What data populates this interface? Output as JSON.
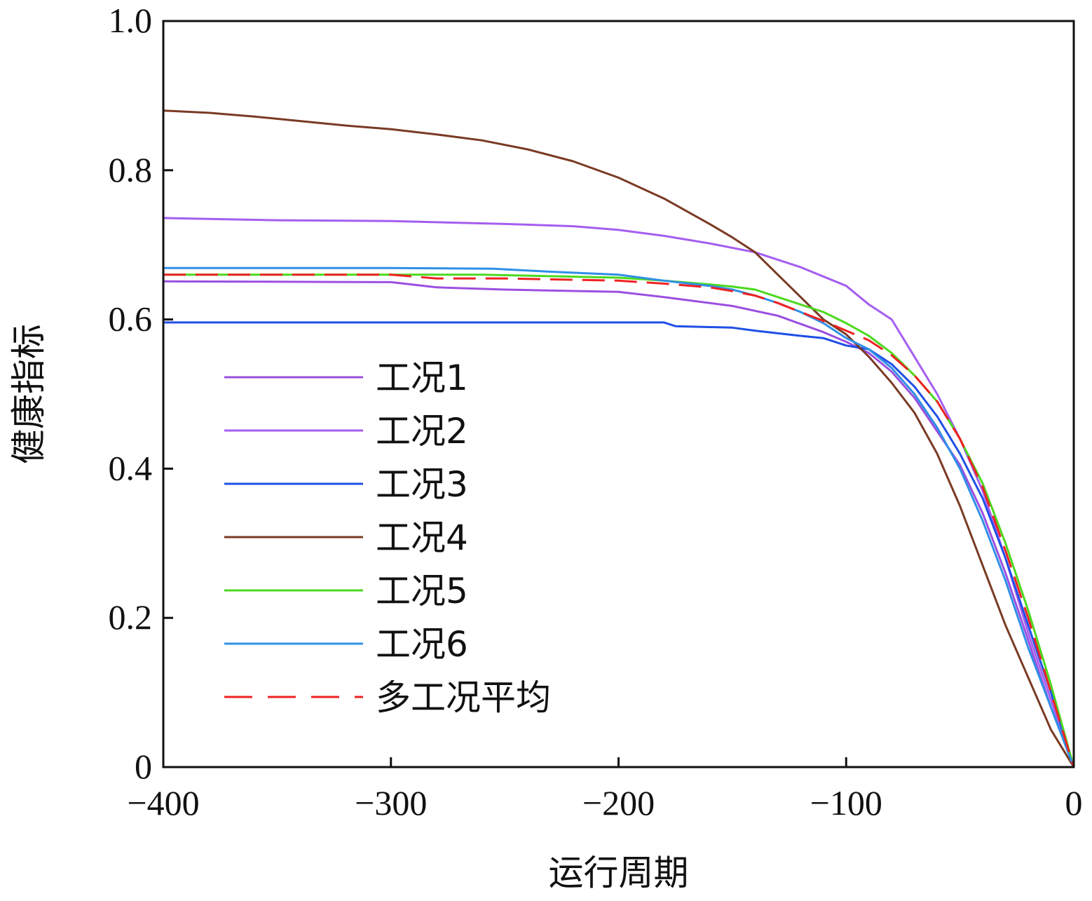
{
  "chart_data": {
    "type": "line",
    "xlabel": "运行周期",
    "ylabel": "健康指标",
    "xlim": [
      -400,
      0
    ],
    "ylim": [
      0,
      1.0
    ],
    "x_ticks": [
      -400,
      -300,
      -200,
      -100,
      0
    ],
    "x_tick_labels": [
      "−400",
      "−300",
      "−200",
      "−100",
      "0"
    ],
    "y_ticks": [
      0,
      0.2,
      0.4,
      0.6,
      0.8,
      1.0
    ],
    "y_tick_labels": [
      "0",
      "0.2",
      "0.4",
      "0.6",
      "0.8",
      "1.0"
    ],
    "grid": false,
    "legend_position": "lower-left",
    "series": [
      {
        "name": "工况1",
        "color": "#9b4fe0",
        "dash": false,
        "points": [
          [
            -400,
            0.651
          ],
          [
            -300,
            0.65
          ],
          [
            -280,
            0.643
          ],
          [
            -250,
            0.64
          ],
          [
            -200,
            0.637
          ],
          [
            -180,
            0.63
          ],
          [
            -150,
            0.618
          ],
          [
            -130,
            0.605
          ],
          [
            -110,
            0.583
          ],
          [
            -100,
            0.57
          ],
          [
            -90,
            0.555
          ],
          [
            -80,
            0.53
          ],
          [
            -70,
            0.495
          ],
          [
            -60,
            0.45
          ],
          [
            -50,
            0.405
          ],
          [
            -40,
            0.34
          ],
          [
            -30,
            0.26
          ],
          [
            -20,
            0.17
          ],
          [
            -10,
            0.08
          ],
          [
            0,
            0.0
          ]
        ]
      },
      {
        "name": "工况2",
        "color": "#a45ef0",
        "dash": false,
        "points": [
          [
            -400,
            0.736
          ],
          [
            -350,
            0.733
          ],
          [
            -300,
            0.732
          ],
          [
            -250,
            0.728
          ],
          [
            -220,
            0.725
          ],
          [
            -200,
            0.72
          ],
          [
            -180,
            0.712
          ],
          [
            -160,
            0.702
          ],
          [
            -140,
            0.69
          ],
          [
            -120,
            0.67
          ],
          [
            -100,
            0.645
          ],
          [
            -90,
            0.62
          ],
          [
            -80,
            0.6
          ],
          [
            -70,
            0.55
          ],
          [
            -60,
            0.5
          ],
          [
            -50,
            0.44
          ],
          [
            -40,
            0.37
          ],
          [
            -30,
            0.28
          ],
          [
            -20,
            0.18
          ],
          [
            -10,
            0.09
          ],
          [
            0,
            0.0
          ]
        ]
      },
      {
        "name": "工况3",
        "color": "#1f4fe6",
        "dash": false,
        "points": [
          [
            -400,
            0.596
          ],
          [
            -300,
            0.596
          ],
          [
            -220,
            0.596
          ],
          [
            -180,
            0.596
          ],
          [
            -175,
            0.591
          ],
          [
            -150,
            0.589
          ],
          [
            -140,
            0.585
          ],
          [
            -120,
            0.578
          ],
          [
            -110,
            0.575
          ],
          [
            -100,
            0.565
          ],
          [
            -90,
            0.56
          ],
          [
            -80,
            0.54
          ],
          [
            -70,
            0.51
          ],
          [
            -60,
            0.47
          ],
          [
            -50,
            0.42
          ],
          [
            -40,
            0.36
          ],
          [
            -30,
            0.28
          ],
          [
            -20,
            0.19
          ],
          [
            -10,
            0.1
          ],
          [
            0,
            0.0
          ]
        ]
      },
      {
        "name": "工况4",
        "color": "#7a3a24",
        "dash": false,
        "points": [
          [
            -400,
            0.88
          ],
          [
            -380,
            0.877
          ],
          [
            -360,
            0.872
          ],
          [
            -340,
            0.866
          ],
          [
            -320,
            0.86
          ],
          [
            -300,
            0.855
          ],
          [
            -280,
            0.848
          ],
          [
            -260,
            0.84
          ],
          [
            -240,
            0.828
          ],
          [
            -220,
            0.812
          ],
          [
            -200,
            0.79
          ],
          [
            -180,
            0.762
          ],
          [
            -160,
            0.728
          ],
          [
            -150,
            0.71
          ],
          [
            -140,
            0.69
          ],
          [
            -130,
            0.66
          ],
          [
            -120,
            0.63
          ],
          [
            -110,
            0.6
          ],
          [
            -100,
            0.58
          ],
          [
            -90,
            0.55
          ],
          [
            -80,
            0.515
          ],
          [
            -70,
            0.475
          ],
          [
            -60,
            0.42
          ],
          [
            -50,
            0.35
          ],
          [
            -40,
            0.27
          ],
          [
            -30,
            0.19
          ],
          [
            -20,
            0.12
          ],
          [
            -10,
            0.05
          ],
          [
            0,
            0.0
          ]
        ]
      },
      {
        "name": "工况5",
        "color": "#4cd91e",
        "dash": false,
        "points": [
          [
            -400,
            0.66
          ],
          [
            -300,
            0.66
          ],
          [
            -260,
            0.66
          ],
          [
            -200,
            0.656
          ],
          [
            -180,
            0.652
          ],
          [
            -160,
            0.647
          ],
          [
            -150,
            0.644
          ],
          [
            -140,
            0.64
          ],
          [
            -130,
            0.63
          ],
          [
            -120,
            0.62
          ],
          [
            -110,
            0.61
          ],
          [
            -100,
            0.595
          ],
          [
            -90,
            0.578
          ],
          [
            -80,
            0.555
          ],
          [
            -70,
            0.525
          ],
          [
            -60,
            0.49
          ],
          [
            -50,
            0.44
          ],
          [
            -40,
            0.38
          ],
          [
            -30,
            0.3
          ],
          [
            -20,
            0.21
          ],
          [
            -10,
            0.11
          ],
          [
            0,
            0.0
          ]
        ]
      },
      {
        "name": "工况6",
        "color": "#2f8fe6",
        "dash": false,
        "points": [
          [
            -400,
            0.669
          ],
          [
            -300,
            0.669
          ],
          [
            -255,
            0.668
          ],
          [
            -230,
            0.664
          ],
          [
            -200,
            0.66
          ],
          [
            -180,
            0.652
          ],
          [
            -160,
            0.645
          ],
          [
            -150,
            0.64
          ],
          [
            -140,
            0.632
          ],
          [
            -130,
            0.622
          ],
          [
            -120,
            0.61
          ],
          [
            -110,
            0.595
          ],
          [
            -100,
            0.575
          ],
          [
            -90,
            0.56
          ],
          [
            -80,
            0.535
          ],
          [
            -70,
            0.5
          ],
          [
            -60,
            0.455
          ],
          [
            -50,
            0.4
          ],
          [
            -40,
            0.33
          ],
          [
            -30,
            0.25
          ],
          [
            -20,
            0.16
          ],
          [
            -10,
            0.08
          ],
          [
            0,
            0.0
          ]
        ]
      },
      {
        "name": "多工况平均",
        "color": "#ee2222",
        "dash": true,
        "points": [
          [
            -400,
            0.66
          ],
          [
            -300,
            0.66
          ],
          [
            -280,
            0.655
          ],
          [
            -250,
            0.655
          ],
          [
            -200,
            0.652
          ],
          [
            -180,
            0.648
          ],
          [
            -160,
            0.643
          ],
          [
            -150,
            0.638
          ],
          [
            -140,
            0.632
          ],
          [
            -130,
            0.622
          ],
          [
            -120,
            0.61
          ],
          [
            -110,
            0.598
          ],
          [
            -100,
            0.585
          ],
          [
            -90,
            0.572
          ],
          [
            -80,
            0.552
          ],
          [
            -70,
            0.525
          ],
          [
            -60,
            0.49
          ],
          [
            -50,
            0.44
          ],
          [
            -40,
            0.375
          ],
          [
            -30,
            0.29
          ],
          [
            -20,
            0.2
          ],
          [
            -10,
            0.1
          ],
          [
            0,
            0.0
          ]
        ]
      }
    ]
  }
}
